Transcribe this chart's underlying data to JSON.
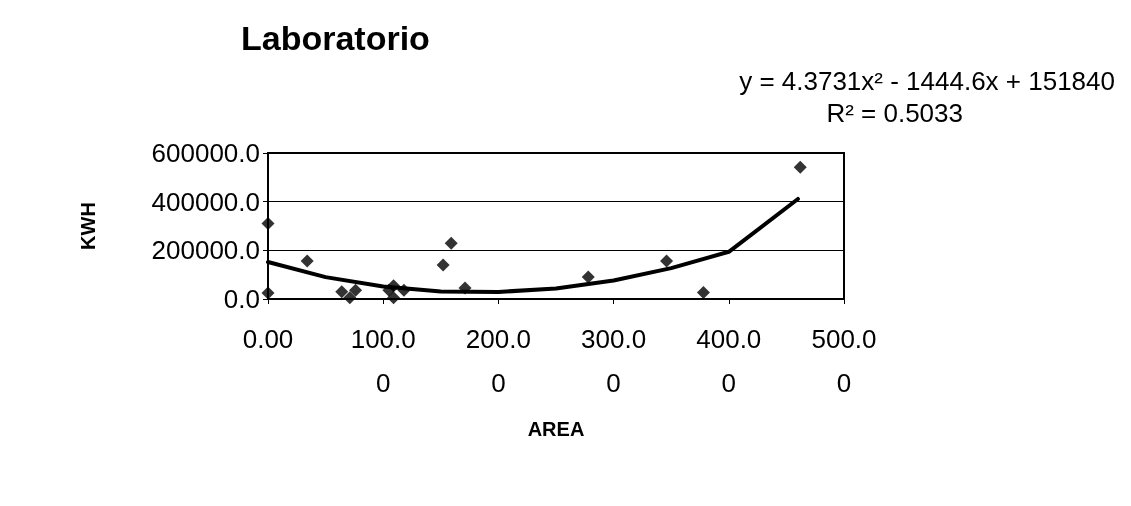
{
  "chart_data": {
    "type": "scatter",
    "title": "Laboratorio",
    "xlabel": "AREA",
    "ylabel": "KWH",
    "xlim": [
      0,
      500
    ],
    "xticks": [
      {
        "value": 0,
        "label": "0.00"
      },
      {
        "value": 100,
        "label": "100.00"
      },
      {
        "value": 200,
        "label": "200.00"
      },
      {
        "value": 300,
        "label": "300.00"
      },
      {
        "value": 400,
        "label": "400.00"
      },
      {
        "value": 500,
        "label": "500.00"
      }
    ],
    "ylim": [
      0,
      600000
    ],
    "yticks": [
      {
        "value": 0,
        "label": "0.0"
      },
      {
        "value": 200000,
        "label": "200000.0"
      },
      {
        "value": 400000,
        "label": "400000.0"
      },
      {
        "value": 600000,
        "label": "600000.0"
      }
    ],
    "grid": "y",
    "marker": "diamond",
    "annotations": [
      "y = 4.3731x² - 1444.6x + 151840",
      "R² = 0.5033"
    ],
    "series": [
      {
        "color": "#000000",
        "x": [
          0,
          0,
          34,
          64,
          71,
          76,
          105,
          109,
          109,
          118,
          152,
          159,
          171,
          278,
          346,
          378,
          462
        ],
        "values": [
          310000,
          25000,
          156000,
          30000,
          5000,
          36000,
          36000,
          54000,
          5000,
          36000,
          140000,
          229000,
          45000,
          90000,
          156000,
          27000,
          541000
        ]
      },
      {
        "type": "line",
        "color": "#000000",
        "marker": "none",
        "line_style": "solid",
        "x": [
          0,
          50,
          100,
          150,
          200,
          250,
          300,
          350,
          400,
          460
        ],
        "values": [
          152000,
          90000,
          51000,
          31000,
          29000,
          43000,
          76000,
          127000,
          194000,
          411000
        ]
      }
    ]
  }
}
